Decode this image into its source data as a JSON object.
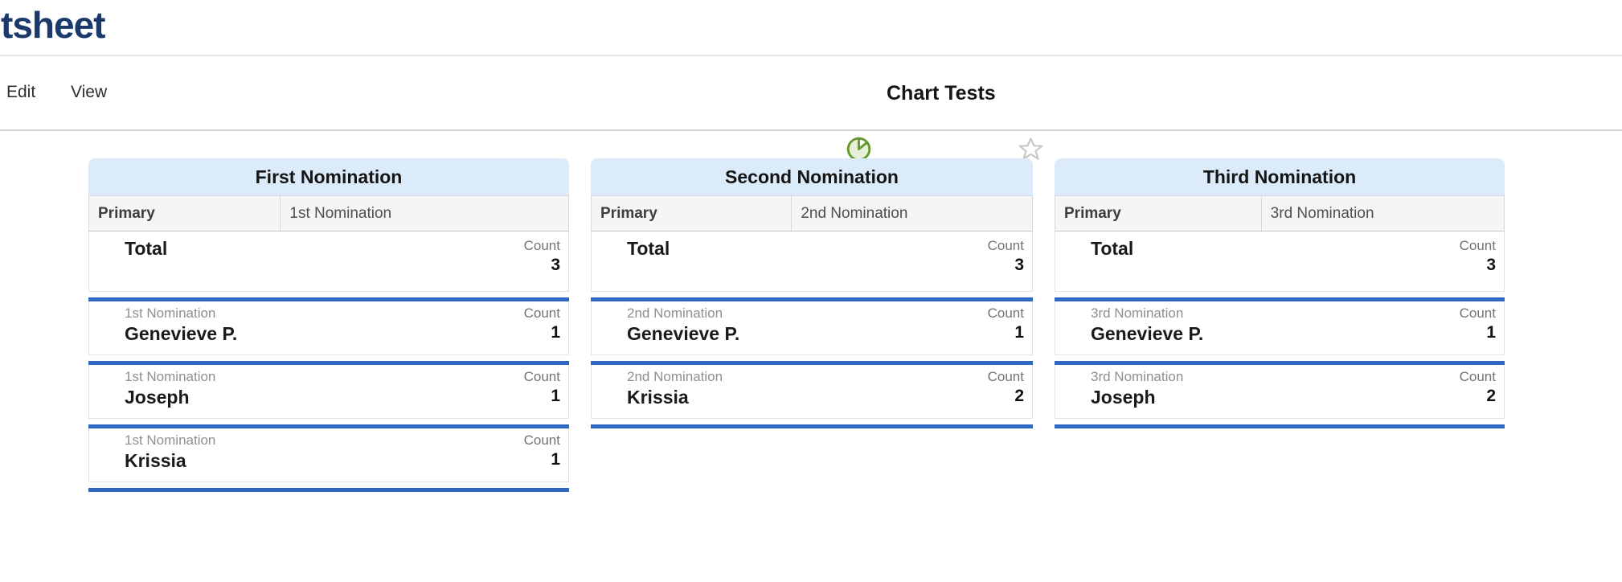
{
  "brand": {
    "logo_text": "tsheet"
  },
  "menu_bar": {
    "items": [
      {
        "label": "Edit"
      },
      {
        "label": "View"
      }
    ],
    "sheet_title": "Chart Tests",
    "icons": {
      "sheet_type": "pie-chart-icon",
      "favorite": "star-icon"
    }
  },
  "panels": [
    {
      "title": "First Nomination",
      "columns": [
        "Primary",
        "1st Nomination"
      ],
      "rows": [
        {
          "label": "",
          "name": "Total",
          "count_label": "Count",
          "count": 3
        },
        {
          "label": "1st Nomination",
          "name": "Genevieve P.",
          "count_label": "Count",
          "count": 1
        },
        {
          "label": "1st Nomination",
          "name": "Joseph",
          "count_label": "Count",
          "count": 1
        },
        {
          "label": "1st Nomination",
          "name": "Krissia",
          "count_label": "Count",
          "count": 1
        }
      ]
    },
    {
      "title": "Second Nomination",
      "columns": [
        "Primary",
        "2nd Nomination"
      ],
      "rows": [
        {
          "label": "",
          "name": "Total",
          "count_label": "Count",
          "count": 3
        },
        {
          "label": "2nd Nomination",
          "name": "Genevieve P.",
          "count_label": "Count",
          "count": 1
        },
        {
          "label": "2nd Nomination",
          "name": "Krissia",
          "count_label": "Count",
          "count": 2
        }
      ]
    },
    {
      "title": "Third Nomination",
      "columns": [
        "Primary",
        "3rd Nomination"
      ],
      "rows": [
        {
          "label": "",
          "name": "Total",
          "count_label": "Count",
          "count": 3
        },
        {
          "label": "3rd Nomination",
          "name": "Genevieve P.",
          "count_label": "Count",
          "count": 1
        },
        {
          "label": "3rd Nomination",
          "name": "Joseph",
          "count_label": "Count",
          "count": 2
        }
      ]
    }
  ],
  "colors": {
    "logo_navy": "#1b3a6b",
    "accent_blue": "#2d69c0",
    "panel_title_blue": "#dcebfa",
    "icon_green": "#669a31",
    "icon_green_fill": "#e6efd8",
    "star_gray": "#c7c7c7"
  }
}
